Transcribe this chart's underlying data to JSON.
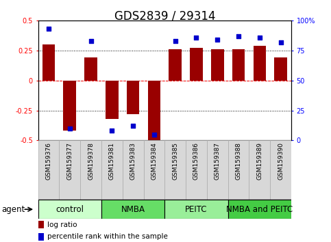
{
  "title": "GDS2839 / 29314",
  "samples": [
    "GSM159376",
    "GSM159377",
    "GSM159378",
    "GSM159381",
    "GSM159383",
    "GSM159384",
    "GSM159385",
    "GSM159386",
    "GSM159387",
    "GSM159388",
    "GSM159389",
    "GSM159390"
  ],
  "log_ratio": [
    0.3,
    -0.42,
    0.19,
    -0.32,
    -0.28,
    -0.5,
    0.26,
    0.27,
    0.26,
    0.26,
    0.29,
    0.19
  ],
  "percentile_rank": [
    93,
    10,
    83,
    8,
    12,
    5,
    83,
    86,
    84,
    87,
    86,
    82
  ],
  "groups": [
    {
      "label": "control",
      "start": 0,
      "end": 3,
      "color": "#ccffcc"
    },
    {
      "label": "NMBA",
      "start": 3,
      "end": 6,
      "color": "#66dd66"
    },
    {
      "label": "PEITC",
      "start": 6,
      "end": 9,
      "color": "#99ee99"
    },
    {
      "label": "NMBA and PEITC",
      "start": 9,
      "end": 12,
      "color": "#44cc44"
    }
  ],
  "bar_color": "#990000",
  "dot_color": "#0000cc",
  "ylim_left": [
    -0.5,
    0.5
  ],
  "ylim_right": [
    0,
    100
  ],
  "yticks_left": [
    -0.5,
    -0.25,
    0,
    0.25,
    0.5
  ],
  "yticks_right": [
    0,
    25,
    50,
    75,
    100
  ],
  "hlines": [
    -0.25,
    0,
    0.25
  ],
  "bar_width": 0.6,
  "figsize": [
    4.83,
    3.54
  ],
  "dpi": 100,
  "title_fontsize": 12,
  "tick_fontsize": 7,
  "sample_fontsize": 6.5,
  "group_label_fontsize": 8.5,
  "legend_fontsize": 7.5,
  "agent_fontsize": 8.5,
  "cell_color": "#d8d8d8",
  "cell_edge_color": "#aaaaaa"
}
